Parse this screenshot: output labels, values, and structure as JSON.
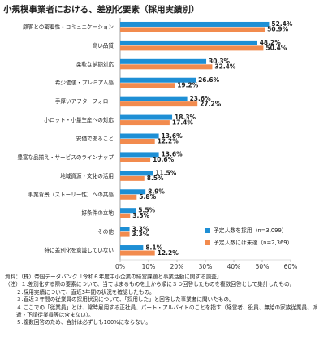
{
  "chart_data": {
    "type": "hbar",
    "title": "小規模事業者における、差別化要素（採用実績別）",
    "categories": [
      "顧客との密着性・コミュニケーション",
      "高い品質",
      "柔軟な納期対応",
      "希少価値・プレミアム感",
      "手厚いアフターフォロー",
      "小ロット・小量生産への対応",
      "安価であること",
      "豊富な品揃え・サービスのラインナップ",
      "地域資源・文化の活用",
      "事業背景（ストーリー性）への共感",
      "好条件の立地",
      "その他",
      "特に差別化を意識していない"
    ],
    "series": [
      {
        "name": "予定人数を採用（n=3,099）",
        "color": "#1e8fd5",
        "values": [
          52.4,
          48.2,
          30.3,
          26.6,
          23.6,
          18.3,
          13.6,
          13.6,
          11.5,
          8.9,
          5.5,
          3.3,
          8.1
        ],
        "value_labels": [
          "52.4%",
          "48.2%",
          "30.3%",
          "26.6%",
          "23.6%",
          "18.3%",
          "13.6%",
          "13.6%",
          "11.5%",
          "8.9%",
          "5.5%",
          "3.3%",
          "8.1%"
        ]
      },
      {
        "name": "予定人数には未達（n=2,369）",
        "color": "#f28b4e",
        "values": [
          50.9,
          50.4,
          32.4,
          19.2,
          27.2,
          17.4,
          12.2,
          10.6,
          8.5,
          5.8,
          3.5,
          3.3,
          12.2
        ],
        "value_labels": [
          "50.9%",
          "50.4%",
          "32.4%",
          "19.2%",
          "27.2%",
          "17.4%",
          "12.2%",
          "10.6%",
          "8.5%",
          "5.8%",
          "3.5%",
          "3.3%",
          "12.2%"
        ]
      }
    ],
    "xlim": [
      0,
      60
    ],
    "xticks": [
      {
        "value": 0,
        "label": "0%"
      },
      {
        "value": 10,
        "label": "10%"
      },
      {
        "value": 20,
        "label": "20%"
      },
      {
        "value": 30,
        "label": "30%"
      },
      {
        "value": 40,
        "label": "40%"
      },
      {
        "value": 50,
        "label": "50%"
      },
      {
        "value": 60,
        "label": "60%"
      }
    ],
    "legend": "lower-right"
  },
  "notes": [
    "資料：（株）帝国データバンク「令和６年度中小企業の経営課題と事業活動に関する調査」",
    "（注）１.差別化する際の要素について、当てはまるものを上から順に３つ回答したものを複数回答として集計したもの。",
    "２.採用実績について、直近3年間の状況を確認したもの。",
    "３.直近３年間の従業員の採用状況について、「採用した」と回答した事業者に聞いたもの。",
    "４.ここでの「従業員」とは、常時雇用する正社員、パート・アルバイトのことを指す（経営者、役員、無給の家族従業員、派遣・下請従業員等は含まない）。",
    "５.複数回答のため、合計は必ずしも100%にならない。"
  ]
}
